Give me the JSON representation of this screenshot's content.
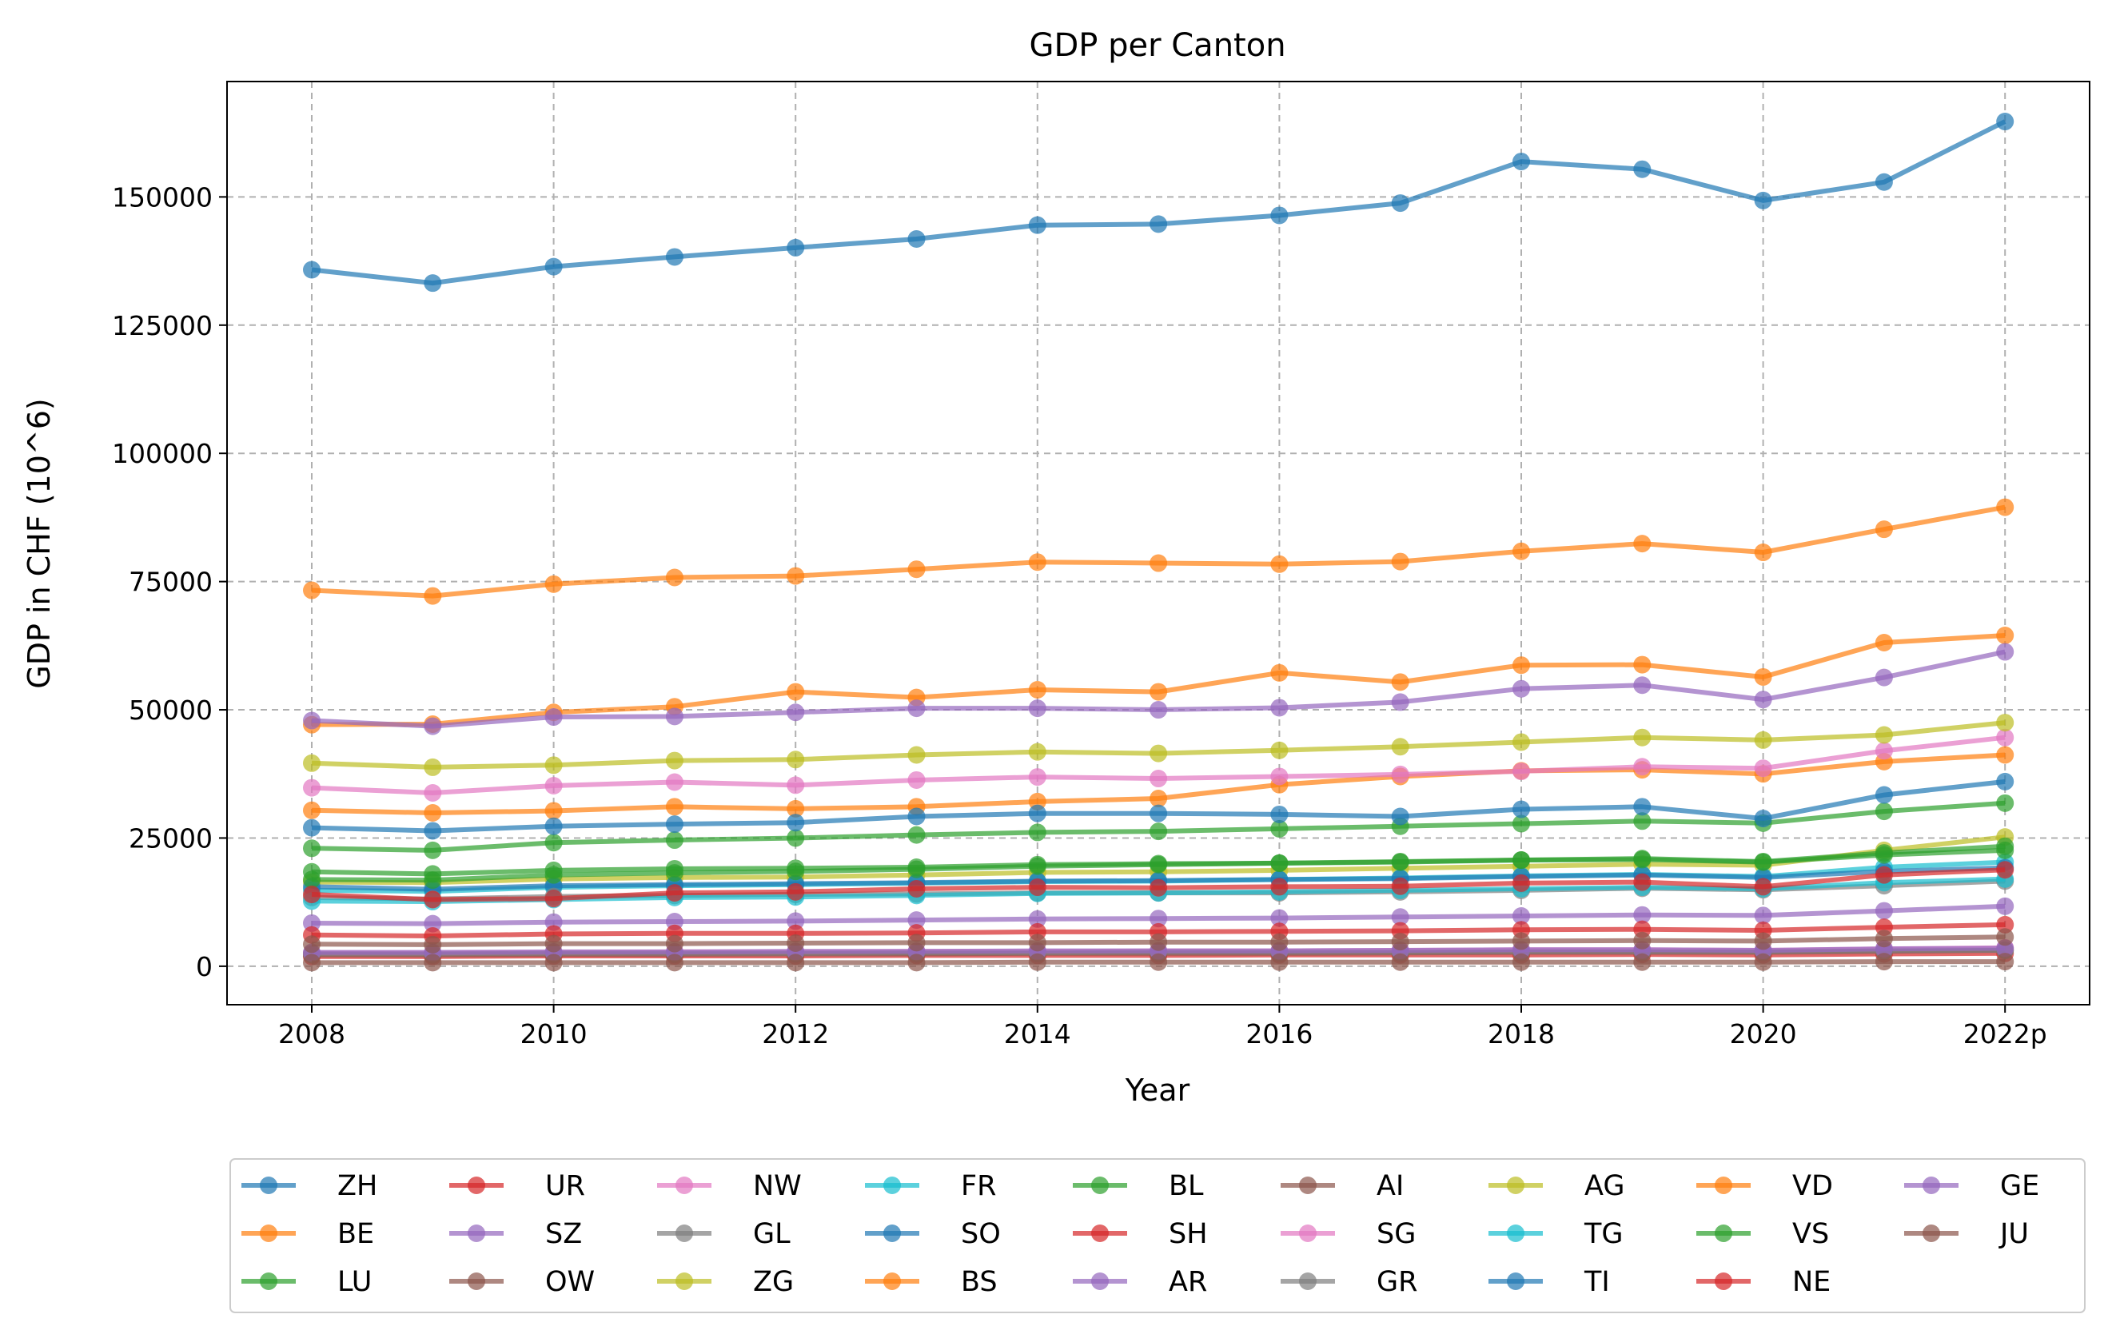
{
  "chart_data": {
    "type": "line",
    "title": "GDP per Canton",
    "xlabel": "Year",
    "ylabel": "GDP in CHF (10^6)",
    "categories": [
      "2008",
      "2009",
      "2010",
      "2011",
      "2012",
      "2013",
      "2014",
      "2015",
      "2016",
      "2017",
      "2018",
      "2019",
      "2020",
      "2021",
      "2022p"
    ],
    "x_tick_labels": [
      "2008",
      "2010",
      "2012",
      "2014",
      "2016",
      "2018",
      "2020",
      "2022p"
    ],
    "y_ticks": [
      0,
      25000,
      50000,
      75000,
      100000,
      125000,
      150000
    ],
    "ylim": [
      -7500,
      172500
    ],
    "grid": true,
    "legend_position": "bottom",
    "legend_columns": 9,
    "series": [
      {
        "name": "ZH",
        "color": "#1f77b4",
        "values": [
          135800,
          133200,
          136400,
          138300,
          140100,
          141800,
          144500,
          144700,
          146400,
          148800,
          156900,
          155400,
          149300,
          152900,
          164700
        ]
      },
      {
        "name": "BE",
        "color": "#ff7f0e",
        "values": [
          73300,
          72200,
          74500,
          75800,
          76100,
          77400,
          78800,
          78600,
          78400,
          78900,
          80900,
          82400,
          80700,
          85200,
          89500
        ]
      },
      {
        "name": "LU",
        "color": "#2ca02c",
        "values": [
          23000,
          22600,
          24100,
          24600,
          25000,
          25600,
          26100,
          26300,
          26800,
          27300,
          27800,
          28300,
          27900,
          30200,
          31800
        ]
      },
      {
        "name": "UR",
        "color": "#d62728",
        "values": [
          1900,
          1900,
          2000,
          2000,
          2000,
          2100,
          2100,
          2100,
          2200,
          2200,
          2200,
          2300,
          2200,
          2400,
          2500
        ]
      },
      {
        "name": "SZ",
        "color": "#9467bd",
        "values": [
          8400,
          8300,
          8600,
          8700,
          8800,
          9000,
          9200,
          9300,
          9400,
          9600,
          9800,
          10000,
          9900,
          10800,
          11700
        ]
      },
      {
        "name": "OW",
        "color": "#8c564b",
        "values": [
          2200,
          2200,
          2300,
          2300,
          2400,
          2400,
          2500,
          2500,
          2500,
          2600,
          2700,
          2700,
          2700,
          2900,
          3100
        ]
      },
      {
        "name": "NW",
        "color": "#e377c2",
        "values": [
          2600,
          2600,
          2700,
          2800,
          2800,
          2900,
          2900,
          3000,
          3000,
          3100,
          3200,
          3200,
          3100,
          3400,
          3600
        ]
      },
      {
        "name": "GL",
        "color": "#7f7f7f",
        "values": [
          2400,
          2400,
          2500,
          2500,
          2500,
          2600,
          2600,
          2700,
          2700,
          2700,
          2800,
          2800,
          2800,
          3000,
          3100
        ]
      },
      {
        "name": "ZG",
        "color": "#bcbd22",
        "values": [
          16400,
          16300,
          17000,
          17300,
          17400,
          17800,
          18300,
          18400,
          18700,
          19100,
          19500,
          19900,
          19700,
          22600,
          25200
        ]
      },
      {
        "name": "FR",
        "color": "#17becf",
        "values": [
          14800,
          14600,
          15400,
          15700,
          15900,
          16200,
          16500,
          16600,
          16900,
          17200,
          17600,
          17900,
          17500,
          19300,
          20300
        ]
      },
      {
        "name": "SO",
        "color": "#1f77b4",
        "values": [
          15500,
          15000,
          15700,
          15900,
          16100,
          16300,
          16600,
          16700,
          16900,
          17100,
          17500,
          17800,
          17300,
          18500,
          19200
        ]
      },
      {
        "name": "BS",
        "color": "#ff7f0e",
        "values": [
          30400,
          29900,
          30300,
          31100,
          30700,
          31100,
          32100,
          32700,
          35400,
          37000,
          38100,
          38300,
          37500,
          39900,
          41200
        ]
      },
      {
        "name": "BL",
        "color": "#2ca02c",
        "values": [
          18400,
          18000,
          18700,
          19000,
          19100,
          19300,
          19800,
          20000,
          20100,
          20400,
          20700,
          20800,
          20300,
          21700,
          22600
        ]
      },
      {
        "name": "SH",
        "color": "#d62728",
        "values": [
          6100,
          5900,
          6300,
          6400,
          6400,
          6500,
          6700,
          6700,
          6800,
          6900,
          7100,
          7200,
          7000,
          7600,
          8100
        ]
      },
      {
        "name": "AR",
        "color": "#9467bd",
        "values": [
          2700,
          2700,
          2800,
          2800,
          2900,
          2900,
          3000,
          3000,
          3000,
          3100,
          3200,
          3200,
          3100,
          3400,
          3500
        ]
      },
      {
        "name": "AI",
        "color": "#8c564b",
        "values": [
          700,
          700,
          700,
          700,
          700,
          700,
          800,
          800,
          800,
          800,
          800,
          800,
          800,
          900,
          900
        ]
      },
      {
        "name": "SG",
        "color": "#e377c2",
        "values": [
          34800,
          33800,
          35200,
          35900,
          35300,
          36300,
          36900,
          36600,
          37000,
          37400,
          38000,
          38900,
          38600,
          42000,
          44600
        ]
      },
      {
        "name": "GR",
        "color": "#7f7f7f",
        "values": [
          13400,
          13100,
          13600,
          13800,
          14000,
          14100,
          14300,
          14300,
          14300,
          14500,
          14800,
          15200,
          14900,
          15700,
          16600
        ]
      },
      {
        "name": "AG",
        "color": "#bcbd22",
        "values": [
          39600,
          38800,
          39200,
          40100,
          40300,
          41200,
          41800,
          41500,
          42100,
          42800,
          43700,
          44600,
          44100,
          45100,
          47500
        ]
      },
      {
        "name": "TG",
        "color": "#17becf",
        "values": [
          12700,
          12600,
          13000,
          13400,
          13500,
          13800,
          14200,
          14300,
          14500,
          14800,
          15100,
          15400,
          15100,
          16300,
          17000
        ]
      },
      {
        "name": "TI",
        "color": "#1f77b4",
        "values": [
          27000,
          26400,
          27300,
          27700,
          28000,
          29200,
          29800,
          29800,
          29600,
          29200,
          30600,
          31100,
          28800,
          33400,
          36000
        ]
      },
      {
        "name": "VD",
        "color": "#ff7f0e",
        "values": [
          47100,
          47200,
          49500,
          50600,
          53500,
          52400,
          53900,
          53500,
          57200,
          55400,
          58700,
          58800,
          56400,
          63100,
          64500
        ]
      },
      {
        "name": "VS",
        "color": "#2ca02c",
        "values": [
          16900,
          16800,
          17800,
          18200,
          18500,
          18900,
          19500,
          19800,
          20100,
          20300,
          20700,
          21000,
          20400,
          22100,
          23400
        ]
      },
      {
        "name": "NE",
        "color": "#d62728",
        "values": [
          14000,
          13000,
          13200,
          14300,
          14500,
          15100,
          15400,
          15300,
          15500,
          15600,
          16200,
          16400,
          15500,
          17800,
          18800
        ]
      },
      {
        "name": "GE",
        "color": "#9467bd",
        "values": [
          47900,
          46800,
          48600,
          48700,
          49500,
          50300,
          50300,
          50000,
          50400,
          51500,
          54100,
          54800,
          52000,
          56300,
          61300
        ]
      },
      {
        "name": "JU",
        "color": "#8c564b",
        "values": [
          4300,
          4200,
          4400,
          4400,
          4500,
          4600,
          4600,
          4700,
          4700,
          4800,
          4900,
          5000,
          4900,
          5400,
          5700
        ]
      }
    ]
  }
}
